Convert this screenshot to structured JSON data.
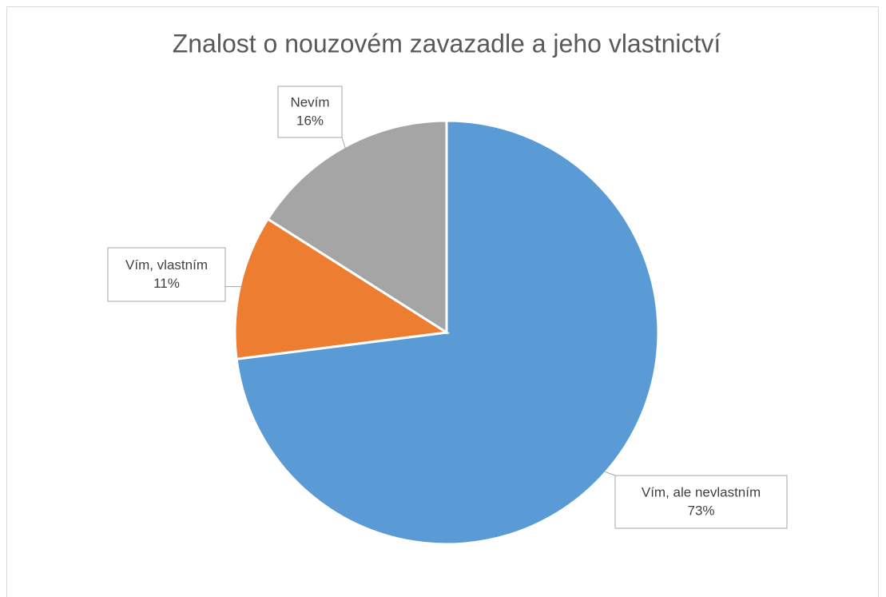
{
  "chart_data": {
    "type": "pie",
    "title": "Znalost o nouzovém zavazadle a jeho vlastnictví",
    "categories": [
      "Vím, ale nevlastním",
      "Vím, vlastním",
      "Nevím"
    ],
    "values": [
      73,
      11,
      16
    ],
    "value_labels": [
      "73%",
      "11%",
      "16%"
    ],
    "colors": [
      "#5b9bd5",
      "#ed7d31",
      "#a5a5a5"
    ]
  }
}
